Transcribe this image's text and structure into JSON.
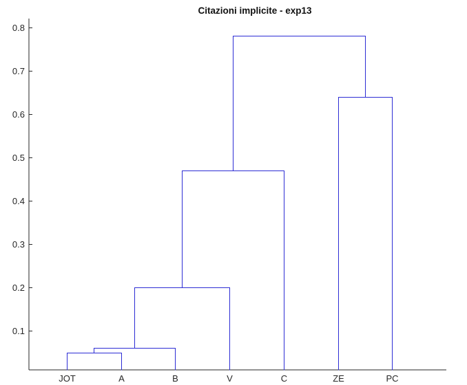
{
  "chart_data": {
    "type": "dendrogram",
    "title": "Citazioni implicite - exp13",
    "xlabel": "",
    "ylabel": "",
    "leaves": [
      "JOT",
      "A",
      "B",
      "V",
      "C",
      "ZE",
      "PC"
    ],
    "yticks": [
      0.1,
      0.2,
      0.3,
      0.4,
      0.5,
      0.6,
      0.7,
      0.8
    ],
    "ylim": [
      0.01,
      0.82
    ],
    "line_color": "#2b2bd4",
    "merges": [
      {
        "left": "JOT",
        "right": "A",
        "height": 0.05
      },
      {
        "left": "JOT+A",
        "right": "B",
        "height": 0.06
      },
      {
        "left": "JOT+A+B",
        "right": "V",
        "height": 0.2
      },
      {
        "left": "JOT+A+B+V",
        "right": "C",
        "height": 0.47
      },
      {
        "left": "ZE",
        "right": "PC",
        "height": 0.64
      },
      {
        "left": "JOT+A+B+V+C",
        "right": "ZE+PC",
        "height": 0.78
      }
    ]
  }
}
